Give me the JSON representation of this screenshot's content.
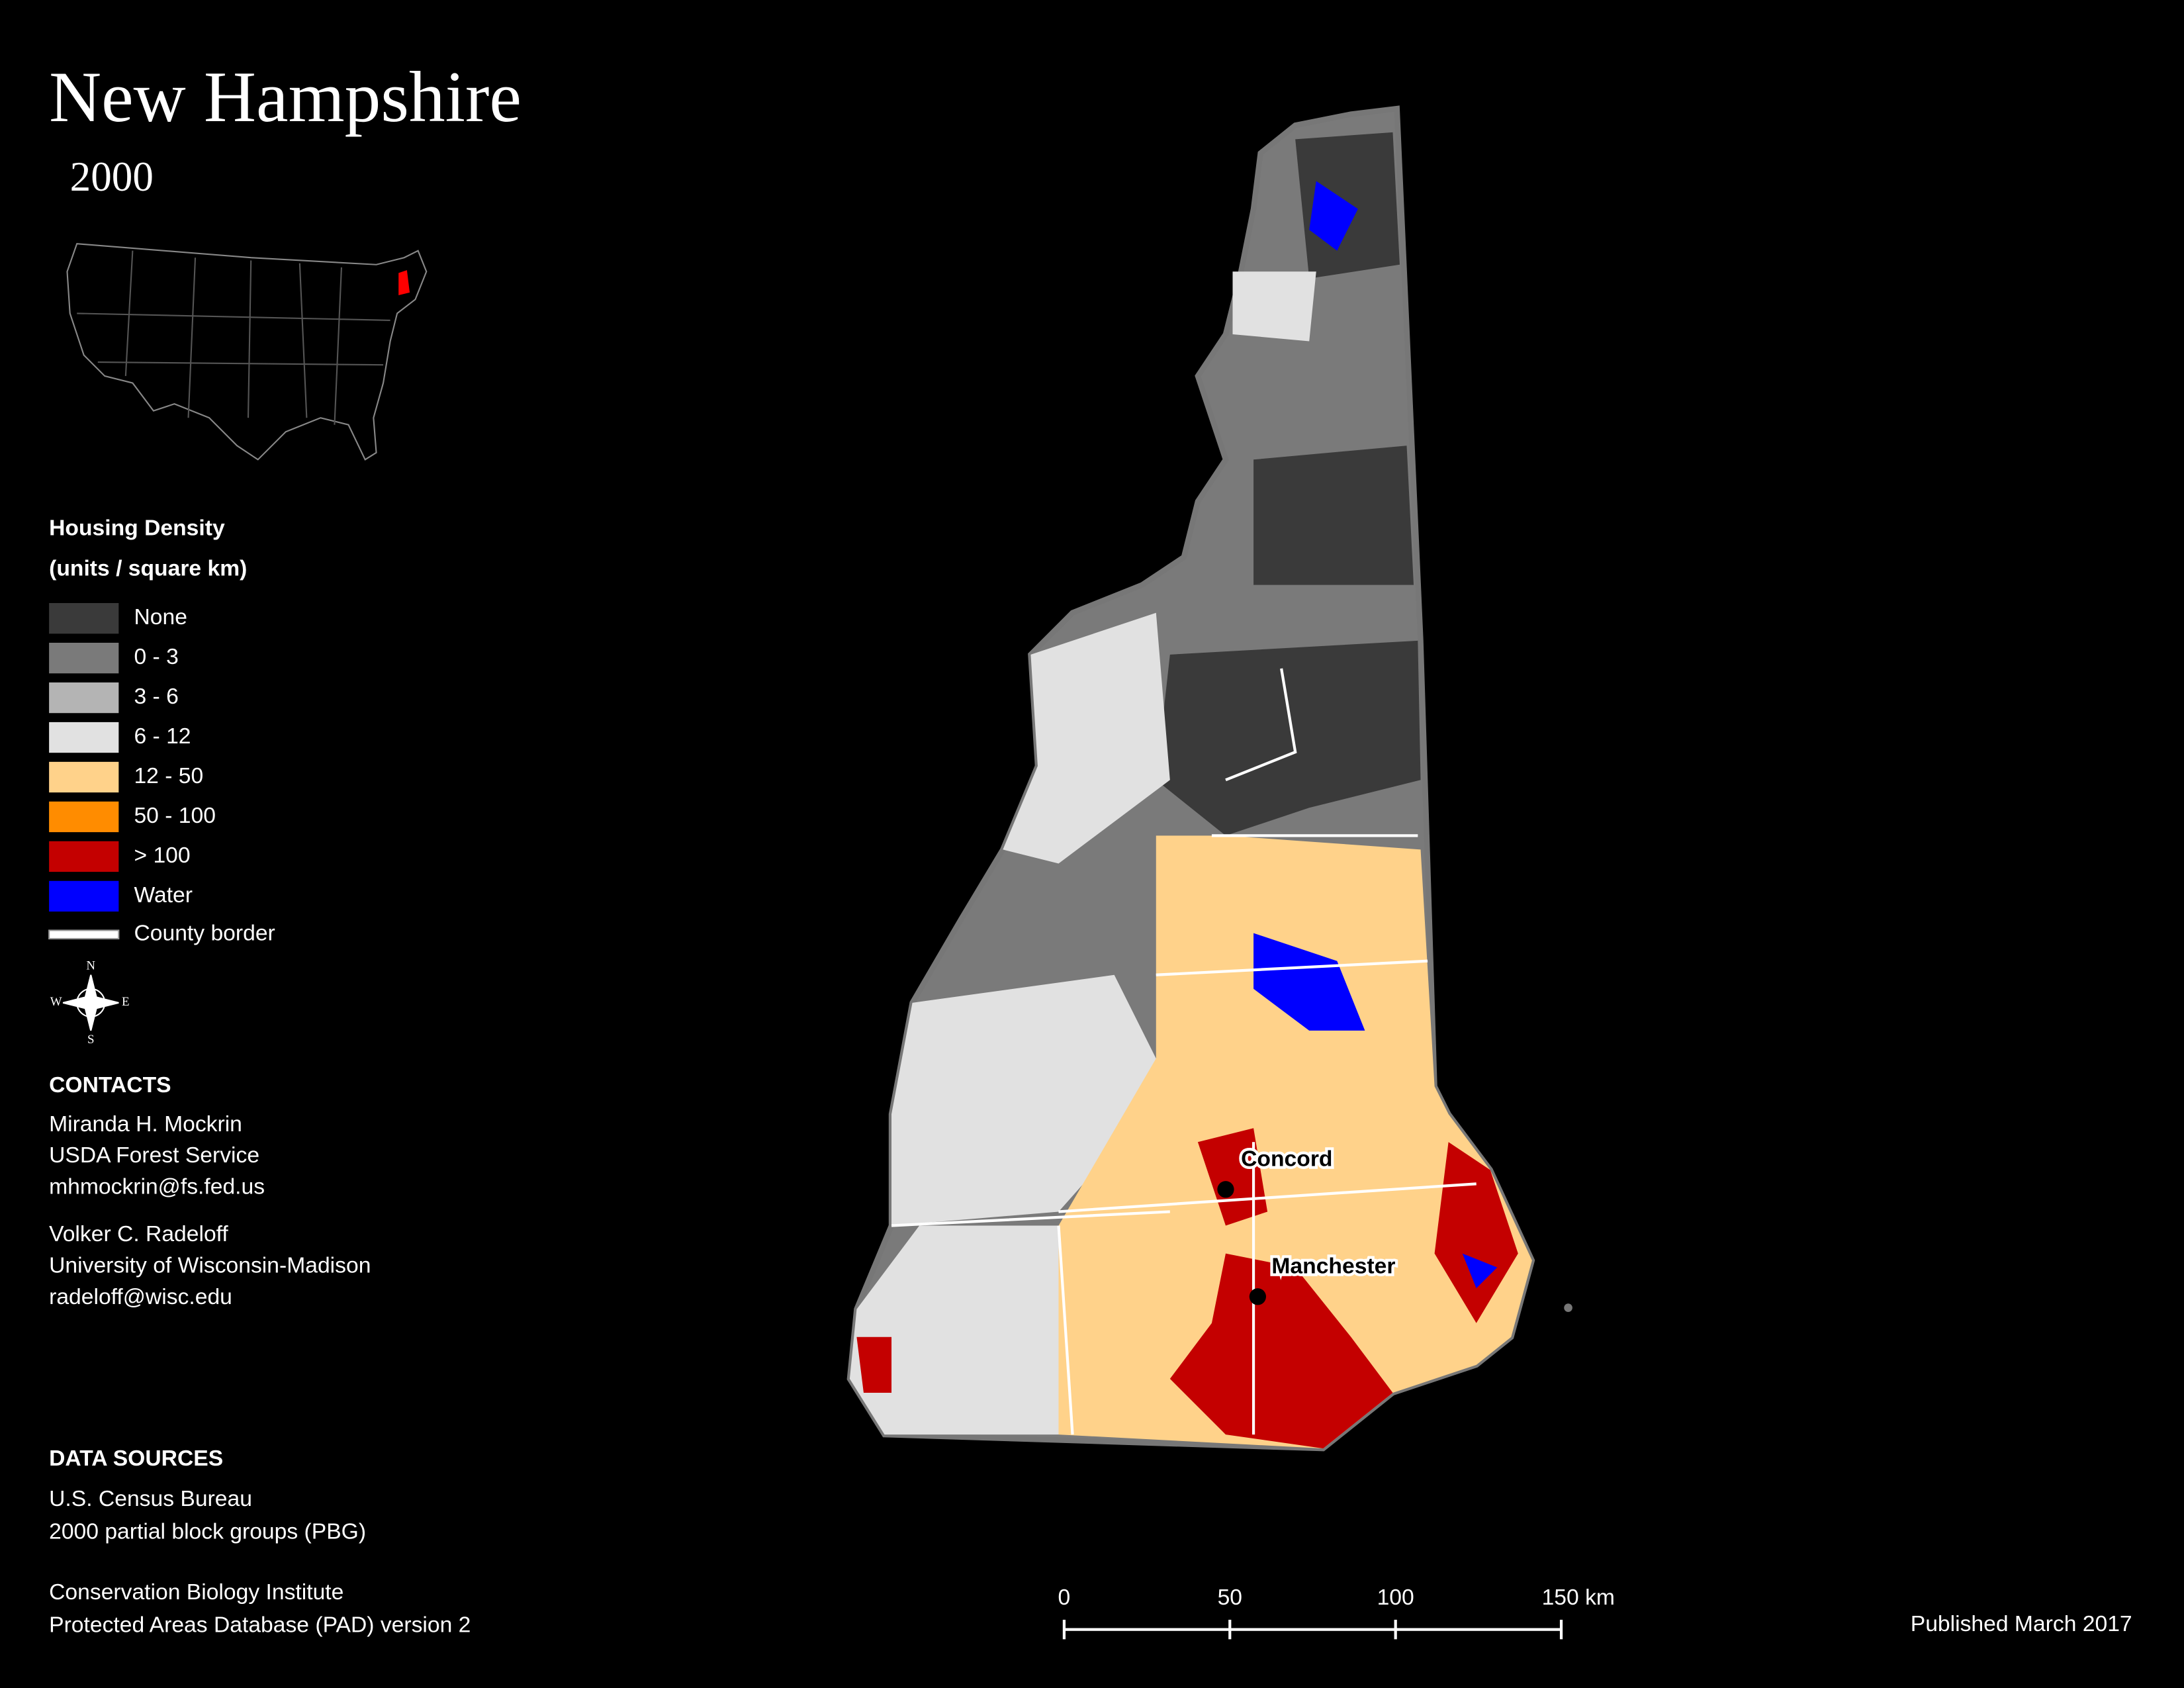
{
  "title": "New Hampshire",
  "year": "2000",
  "legend": {
    "title": "Housing Density",
    "subtitle": "(units / square km)",
    "items": [
      {
        "label": "None",
        "color": "#3a3a3a"
      },
      {
        "label": "0 - 3",
        "color": "#7a7a7a"
      },
      {
        "label": "3 - 6",
        "color": "#b4b4b4"
      },
      {
        "label": "6 - 12",
        "color": "#e1e1e1"
      },
      {
        "label": "12 - 50",
        "color": "#ffd28a"
      },
      {
        "label": "50 - 100",
        "color": "#ff8c00"
      },
      {
        "label": "> 100",
        "color": "#c40000"
      },
      {
        "label": "Water",
        "color": "#0000ff"
      }
    ],
    "county_border": "County border"
  },
  "compass": {
    "north": "N",
    "south": "S",
    "west": "W",
    "east": "E"
  },
  "contacts": {
    "heading": "CONTACTS",
    "people": [
      [
        "Miranda H. Mockrin",
        "USDA Forest Service",
        "mhmockrin@fs.fed.us"
      ],
      [
        "Volker C. Radeloff",
        "University of Wisconsin-Madison",
        "radeloff@wisc.edu"
      ]
    ]
  },
  "data_sources": {
    "heading": "DATA SOURCES",
    "sources": [
      [
        "U.S. Census Bureau",
        "2000 partial block groups (PBG)"
      ],
      [
        "Conservation Biology Institute",
        "Protected Areas Database (PAD) version 2"
      ]
    ]
  },
  "cities": [
    "Concord",
    "Manchester"
  ],
  "scale_bar": [
    "0",
    "50",
    "100",
    "150 km"
  ],
  "published": "Published March 2017"
}
